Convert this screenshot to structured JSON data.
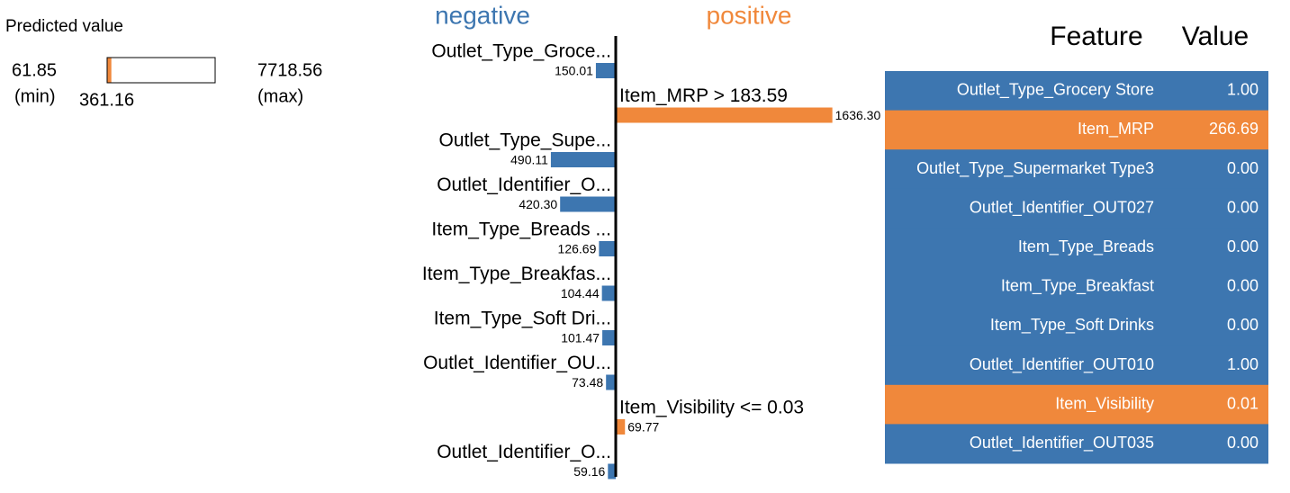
{
  "chart_data": [
    {
      "type": "range",
      "title": "Predicted value",
      "xlim": [
        61.85,
        7718.56
      ],
      "value": 361.16,
      "min_label": "(min)",
      "max_label": "(max)",
      "color": "#f0883b"
    },
    {
      "type": "bar",
      "orientation": "horizontal",
      "legend_labels": [
        "negative",
        "positive"
      ],
      "colors": [
        "#3d76b0",
        "#f0883b"
      ],
      "categories": [
        "Outlet_Type_Groce...",
        "Item_MRP > 183.59",
        "Outlet_Type_Supe...",
        "Outlet_Identifier_O...",
        "Item_Type_Breads ...",
        "Item_Type_Breakfas...",
        "Item_Type_Soft Dri...",
        "Outlet_Identifier_OU...",
        "Item_Visibility <= 0.03",
        "Outlet_Identifier_O..."
      ],
      "values": [
        -150.01,
        1636.3,
        -490.11,
        -420.3,
        -126.69,
        -104.44,
        -101.47,
        -73.48,
        69.77,
        -59.16
      ],
      "value_labels": [
        "150.01",
        "1636.30",
        "490.11",
        "420.30",
        "126.69",
        "104.44",
        "101.47",
        "73.48",
        "69.77",
        "59.16"
      ],
      "xlim": [
        -1700,
        1700
      ]
    }
  ],
  "table": {
    "header": [
      "Feature",
      "Value"
    ],
    "rows": [
      [
        "Outlet_Type_Grocery Store",
        "1.00"
      ],
      [
        "Item_MRP",
        "266.69"
      ],
      [
        "Outlet_Type_Supermarket Type3",
        "0.00"
      ],
      [
        "Outlet_Identifier_OUT027",
        "0.00"
      ],
      [
        "Item_Type_Breads",
        "0.00"
      ],
      [
        "Item_Type_Breakfast",
        "0.00"
      ],
      [
        "Item_Type_Soft Drinks",
        "0.00"
      ],
      [
        "Outlet_Identifier_OUT010",
        "1.00"
      ],
      [
        "Item_Visibility",
        "0.01"
      ],
      [
        "Outlet_Identifier_OUT035",
        "0.00"
      ]
    ],
    "row_colors": [
      "#3d76b0",
      "#f0883b",
      "#3d76b0",
      "#3d76b0",
      "#3d76b0",
      "#3d76b0",
      "#3d76b0",
      "#3d76b0",
      "#f0883b",
      "#3d76b0"
    ]
  }
}
